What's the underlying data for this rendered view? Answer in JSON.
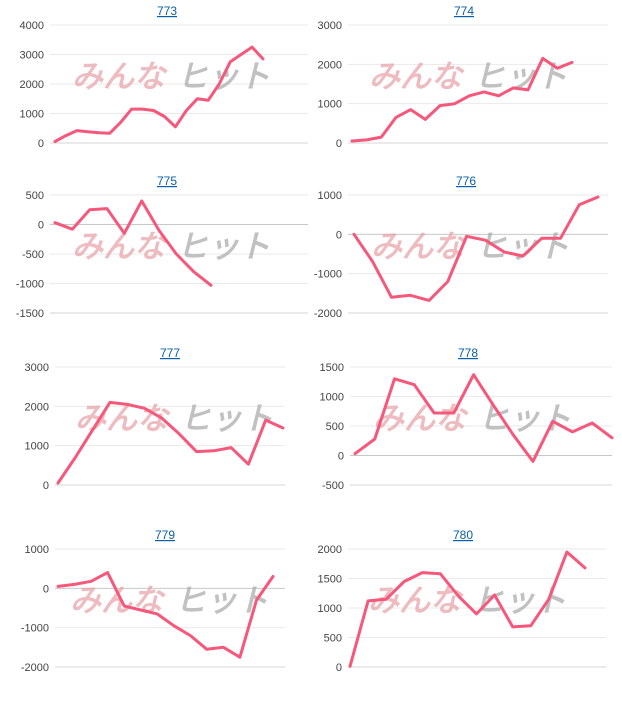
{
  "watermark": {
    "left_text": "みんな",
    "right_text": "ヒット"
  },
  "colors": {
    "series": "#f5587a",
    "title_link": "#0a5fa8"
  },
  "chart_data": [
    {
      "type": "line",
      "title": "773",
      "ylim": [
        0,
        4000
      ],
      "yticks": [
        0,
        1000,
        2000,
        3000,
        4000
      ],
      "grid": true,
      "series": [
        {
          "values": [
            50,
            250,
            420,
            380,
            350,
            330,
            700,
            1150,
            1150,
            1100,
            900,
            550,
            1100,
            1500,
            1450,
            2000,
            2750,
            3000,
            3250,
            2850
          ]
        }
      ]
    },
    {
      "type": "line",
      "title": "774",
      "ylim": [
        0,
        3000
      ],
      "yticks": [
        0,
        1000,
        2000,
        3000
      ],
      "grid": true,
      "series": [
        {
          "values": [
            50,
            80,
            150,
            650,
            850,
            600,
            950,
            1000,
            1200,
            1300,
            1200,
            1400,
            1350,
            2150,
            1900,
            2050
          ]
        }
      ]
    },
    {
      "type": "line",
      "title": "775",
      "ylim": [
        -1500,
        500
      ],
      "yticks": [
        -1500,
        -1000,
        -500,
        0,
        500
      ],
      "grid": true,
      "series": [
        {
          "values": [
            30,
            -80,
            250,
            270,
            -150,
            400,
            -100,
            -500,
            -800,
            -1030
          ]
        }
      ]
    },
    {
      "type": "line",
      "title": "776",
      "ylim": [
        -2000,
        1000
      ],
      "yticks": [
        -2000,
        -1000,
        0,
        1000
      ],
      "grid": true,
      "series": [
        {
          "values": [
            0,
            -700,
            -1600,
            -1550,
            -1680,
            -1200,
            -50,
            -150,
            -450,
            -550,
            -100,
            -100,
            750,
            950
          ]
        }
      ]
    },
    {
      "type": "line",
      "title": "777",
      "ylim": [
        0,
        3000
      ],
      "yticks": [
        0,
        1000,
        2000,
        3000
      ],
      "grid": true,
      "series": [
        {
          "values": [
            50,
            700,
            1400,
            2100,
            2050,
            1950,
            1700,
            1300,
            850,
            870,
            950,
            530,
            1650,
            1450
          ]
        }
      ]
    },
    {
      "type": "line",
      "title": "778",
      "ylim": [
        -500,
        1500
      ],
      "yticks": [
        -500,
        0,
        500,
        1000,
        1500
      ],
      "grid": true,
      "series": [
        {
          "values": [
            30,
            280,
            1300,
            1200,
            720,
            720,
            1370,
            850,
            350,
            -100,
            580,
            400,
            550,
            300
          ]
        }
      ]
    },
    {
      "type": "line",
      "title": "779",
      "ylim": [
        -2000,
        1000
      ],
      "yticks": [
        -2000,
        -1000,
        0,
        1000
      ],
      "grid": true,
      "series": [
        {
          "values": [
            50,
            100,
            180,
            400,
            -450,
            -550,
            -650,
            -950,
            -1200,
            -1550,
            -1500,
            -1750,
            -300,
            300
          ]
        }
      ]
    },
    {
      "type": "line",
      "title": "780",
      "ylim": [
        0,
        2000
      ],
      "yticks": [
        0,
        500,
        1000,
        1500,
        2000
      ],
      "grid": true,
      "series": [
        {
          "values": [
            10,
            1120,
            1150,
            1450,
            1600,
            1580,
            1200,
            900,
            1220,
            680,
            700,
            1150,
            1950,
            1680
          ]
        }
      ]
    }
  ]
}
